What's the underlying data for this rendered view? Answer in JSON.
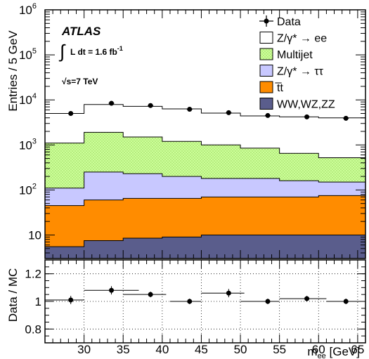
{
  "chart_data": [
    {
      "type": "area",
      "xscale": "linear",
      "yscale": "log",
      "x_edges": [
        25,
        30,
        35,
        40,
        45,
        50,
        55,
        60,
        66
      ],
      "xlim": [
        25,
        66
      ],
      "ylim": [
        3,
        1000000
      ],
      "ylabel": "Entries / 5 GeV",
      "y_ticks": [
        {
          "value": 10,
          "label": "10"
        },
        {
          "value": 100,
          "label": "10",
          "exp": "2"
        },
        {
          "value": 1000,
          "label": "10",
          "exp": "3"
        },
        {
          "value": 10000,
          "label": "10",
          "exp": "4"
        },
        {
          "value": 100000,
          "label": "10",
          "exp": "5"
        },
        {
          "value": 1000000,
          "label": "10",
          "exp": "6"
        }
      ],
      "stack_cumulative": [
        {
          "name": "WW,WZ,ZZ",
          "color": "#5a5d8c",
          "values": [
            5.5,
            7.5,
            8.5,
            9,
            10,
            10,
            10,
            10
          ]
        },
        {
          "name": "t̅t",
          "color": "#ff8c00",
          "values": [
            45,
            60,
            65,
            65,
            70,
            70,
            70,
            75
          ]
        },
        {
          "name": "Z/γ* → ττ",
          "color": "#c8c8ff",
          "values": [
            110,
            250,
            230,
            200,
            180,
            180,
            160,
            150
          ]
        },
        {
          "name": "Multijet",
          "color": "#ccff99",
          "values": [
            1100,
            1900,
            1500,
            1200,
            1000,
            850,
            650,
            520
          ]
        },
        {
          "name": "Z/γ* → ee",
          "color": "#ffffff",
          "values": [
            5000,
            7900,
            7200,
            6300,
            5100,
            4400,
            4200,
            4000
          ]
        }
      ],
      "data": {
        "name": "Data",
        "x": [
          28.3,
          33.5,
          38.5,
          43.5,
          48.5,
          53.5,
          58.5,
          63.5
        ],
        "y": [
          5000,
          8400,
          7500,
          6200,
          5200,
          4500,
          4200,
          3900
        ]
      },
      "legend": {
        "placement": "top-right",
        "entries": [
          {
            "label": "Data",
            "kind": "marker",
            "color": "#000000"
          },
          {
            "label": "Z/γ* → ee",
            "kind": "box",
            "color": "#ffffff"
          },
          {
            "label": "Multijet",
            "kind": "box",
            "color": "#ccff99",
            "pattern": "dots"
          },
          {
            "label": "Z/γ* → ττ",
            "kind": "box",
            "color": "#c8c8ff"
          },
          {
            "label": "t̅t",
            "kind": "box",
            "color": "#ff8c00"
          },
          {
            "label": "WW,WZ,ZZ",
            "kind": "box",
            "color": "#5a5d8c"
          }
        ]
      },
      "annotations": {
        "experiment": "ATLAS",
        "lumi_int": "∫",
        "lumi_text": "L dt = 1.6 fb",
        "lumi_exp": "-1",
        "energy": "√s=7 TeV"
      }
    },
    {
      "type": "scatter",
      "xlim": [
        25,
        66
      ],
      "ylim": [
        0.7,
        1.3
      ],
      "xlabel": "m",
      "xlabel_sub": "ee",
      "xlabel_unit": " [GeV]",
      "ylabel": "Data / MC",
      "x_ticks": [
        30,
        35,
        40,
        45,
        50,
        55,
        60,
        65
      ],
      "y_ticks": [
        {
          "value": 0.8,
          "label": "0.8"
        },
        {
          "value": 1.0,
          "label": "1"
        },
        {
          "value": 1.2,
          "label": "1.2"
        }
      ],
      "grid": true,
      "points": [
        {
          "x": 28.3,
          "y": 1.01,
          "xerr": [
            25,
            30
          ],
          "yerr": 0.03
        },
        {
          "x": 33.5,
          "y": 1.08,
          "xerr": [
            30,
            37
          ],
          "yerr": 0.03
        },
        {
          "x": 38.5,
          "y": 1.05,
          "xerr": [
            35,
            40.5
          ],
          "yerr": 0.02
        },
        {
          "x": 43.5,
          "y": 1.0,
          "xerr": [
            41,
            45
          ],
          "yerr": 0.02
        },
        {
          "x": 48.5,
          "y": 1.06,
          "xerr": [
            45,
            50.5
          ],
          "yerr": 0.03
        },
        {
          "x": 53.5,
          "y": 1.0,
          "xerr": [
            50,
            55
          ],
          "yerr": 0.02
        },
        {
          "x": 58.5,
          "y": 1.02,
          "xerr": [
            55,
            61
          ],
          "yerr": 0.02
        },
        {
          "x": 63.5,
          "y": 1.0,
          "xerr": [
            61,
            66
          ],
          "yerr": 0.02
        }
      ]
    }
  ]
}
